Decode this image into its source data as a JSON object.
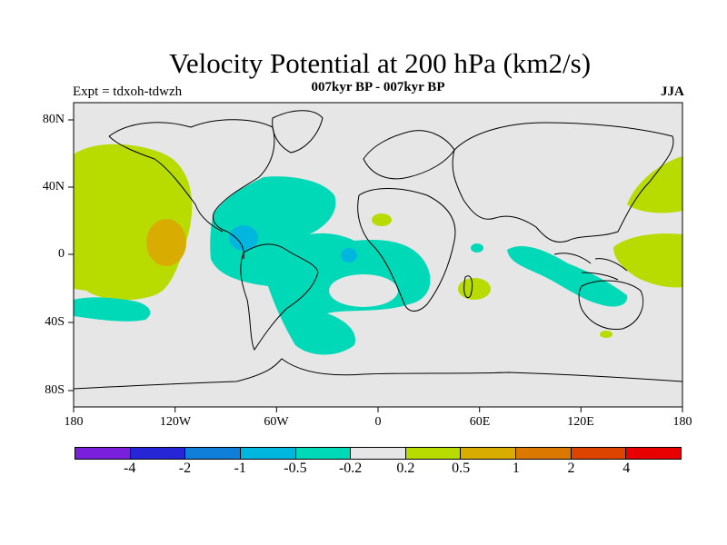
{
  "title": "Velocity Potential at 200 hPa (km2/s)",
  "subtitle": "007kyr BP - 007kyr BP",
  "experiment": "Expt = tdxoh-tdwzh",
  "season": "JJA",
  "lat_ticks": [
    "80N",
    "40N",
    "0",
    "40S",
    "80S"
  ],
  "lon_ticks": [
    "180",
    "120W",
    "60W",
    "0",
    "60E",
    "120E",
    "180"
  ],
  "legend": {
    "colors": [
      "#7a1fdc",
      "#2626d6",
      "#0f7fd9",
      "#00b6df",
      "#00d9b8",
      "#e6e6e6",
      "#b8dc00",
      "#d8ac00",
      "#db7800",
      "#dd4400",
      "#e80000"
    ],
    "labels": [
      "-4",
      "-2",
      "-1",
      "-0.5",
      "-0.2",
      "0.2",
      "0.5",
      "1",
      "2",
      "4"
    ]
  }
}
